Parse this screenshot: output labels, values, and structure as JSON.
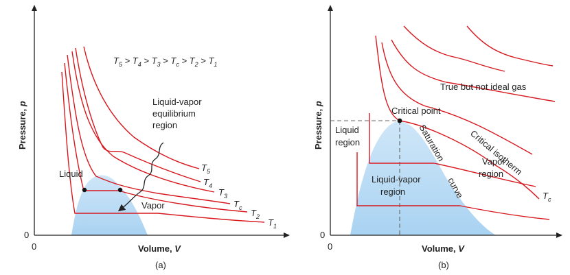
{
  "colors": {
    "isotherm": "#d7191f",
    "dome_fill": "#a9d3f2",
    "dome_fill_light": "#e6f2fb",
    "axis": "#222222",
    "dashed": "#666666"
  },
  "panel_a": {
    "caption": "(a)",
    "y_axis_label": "Pressure, ",
    "y_axis_var": "p",
    "x_axis_label": "Volume, ",
    "x_axis_var": "V",
    "origin_x": "0",
    "origin_y": "0",
    "inequality": {
      "t5": "5",
      "t4": "4",
      "t3": "3",
      "tc": "c",
      "t2": "2",
      "t1": "1",
      "gt": " > "
    },
    "equilibrium_label": [
      "Liquid-vapor",
      "equilibrium",
      "region"
    ],
    "liquid_label": "Liquid",
    "vapor_label": "Vapor",
    "curve_labels": [
      {
        "base": "T",
        "sub": "5"
      },
      {
        "base": "T",
        "sub": "4"
      },
      {
        "base": "T",
        "sub": "3"
      },
      {
        "base": "T",
        "sub": "c"
      },
      {
        "base": "T",
        "sub": "2"
      },
      {
        "base": "T",
        "sub": "1"
      }
    ]
  },
  "panel_b": {
    "caption": "(b)",
    "y_axis_label": "Pressure, ",
    "y_axis_var": "p",
    "x_axis_label": "Volume, ",
    "x_axis_var": "V",
    "origin_x": "0",
    "origin_y": "0",
    "true_gas_label": "True but not ideal gas",
    "critical_point_label": "Critical point",
    "liquid_region_label": [
      "Liquid",
      "region"
    ],
    "liquid_vapor_label": [
      "Liquid-vapor",
      "region"
    ],
    "vapor_region_label": [
      "Vapor",
      "region"
    ],
    "saturation_label": "Saturation",
    "curve_label": "curve",
    "critical_isotherm_label": "Critical isotherm",
    "tc_label": {
      "base": "T",
      "sub": "c"
    }
  }
}
